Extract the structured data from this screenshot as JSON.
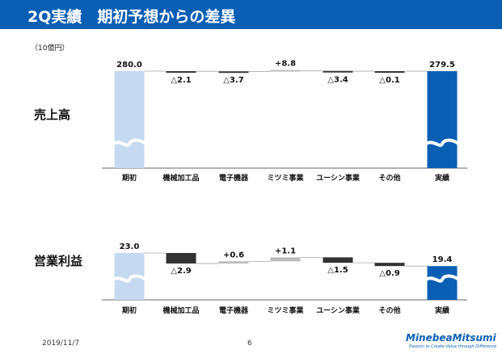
{
  "header": {
    "title": "2Q実績　期初予想からの差異"
  },
  "unit": "（10億円）",
  "colors": {
    "title_bg": "#0a5fb5",
    "start_bar": "#c5d9f1",
    "end_bar": "#0a5fb5",
    "negative": "#333333",
    "positive": "#bbbbbb"
  },
  "chart_data": [
    {
      "type": "bar",
      "row_label": "売上高",
      "categories": [
        "期初",
        "機械加工品",
        "電子機器",
        "ミツミ事業",
        "ユーシン事業",
        "その他",
        "実績"
      ],
      "values": [
        280.0,
        -2.1,
        -3.7,
        8.8,
        -3.4,
        -0.1,
        279.5
      ],
      "labels": [
        "280.0",
        "△2.1",
        "△3.7",
        "+8.8",
        "△3.4",
        "△0.1",
        "279.5"
      ]
    },
    {
      "type": "bar",
      "row_label": "営業利益",
      "categories": [
        "期初",
        "機械加工品",
        "電子機器",
        "ミツミ事業",
        "ユーシン事業",
        "その他",
        "実績"
      ],
      "values": [
        23.0,
        -2.9,
        0.6,
        1.1,
        -1.5,
        -0.9,
        19.4
      ],
      "labels": [
        "23.0",
        "△2.9",
        "+0.6",
        "+1.1",
        "△1.5",
        "△0.9",
        "19.4"
      ]
    }
  ],
  "footer": {
    "date": "2019/11/7",
    "page": "6"
  },
  "logo": {
    "name": "MinebeaMitsumi",
    "tagline": "Passion to Create Value through Difference"
  }
}
